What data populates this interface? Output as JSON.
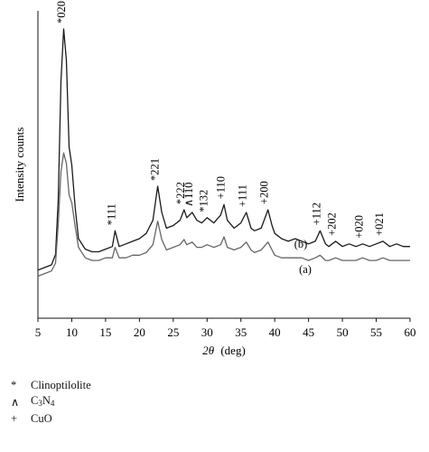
{
  "chart_data": {
    "type": "line",
    "xlabel_symbol": "2θ",
    "xlabel_unit": "(deg)",
    "ylabel": "Intensity counts",
    "xlim": [
      5,
      60
    ],
    "x_ticks": [
      5,
      10,
      15,
      20,
      25,
      30,
      35,
      40,
      45,
      50,
      55,
      60
    ],
    "y_ticks": [],
    "grid": false,
    "series": [
      {
        "name": "(b)",
        "color": "#1a1a1a",
        "points": [
          [
            5,
            0.08
          ],
          [
            6,
            0.09
          ],
          [
            7,
            0.1
          ],
          [
            7.6,
            0.14
          ],
          [
            8.0,
            0.35
          ],
          [
            8.4,
            0.8
          ],
          [
            8.8,
            1.0
          ],
          [
            9.2,
            0.88
          ],
          [
            9.6,
            0.55
          ],
          [
            10.0,
            0.48
          ],
          [
            10.5,
            0.32
          ],
          [
            11,
            0.2
          ],
          [
            12,
            0.16
          ],
          [
            13,
            0.15
          ],
          [
            14,
            0.15
          ],
          [
            15,
            0.16
          ],
          [
            16,
            0.17
          ],
          [
            16.4,
            0.23
          ],
          [
            17,
            0.17
          ],
          [
            18,
            0.18
          ],
          [
            19,
            0.19
          ],
          [
            20,
            0.2
          ],
          [
            21,
            0.22
          ],
          [
            22,
            0.27
          ],
          [
            22.7,
            0.4
          ],
          [
            23.3,
            0.3
          ],
          [
            24,
            0.24
          ],
          [
            25,
            0.25
          ],
          [
            26,
            0.27
          ],
          [
            26.6,
            0.31
          ],
          [
            27,
            0.28
          ],
          [
            27.8,
            0.3
          ],
          [
            28.5,
            0.27
          ],
          [
            29.2,
            0.26
          ],
          [
            30.0,
            0.28
          ],
          [
            31,
            0.26
          ],
          [
            32,
            0.29
          ],
          [
            32.5,
            0.33
          ],
          [
            33,
            0.27
          ],
          [
            34,
            0.24
          ],
          [
            35,
            0.26
          ],
          [
            35.8,
            0.3
          ],
          [
            36.5,
            0.24
          ],
          [
            37,
            0.23
          ],
          [
            38,
            0.24
          ],
          [
            39,
            0.31
          ],
          [
            39.6,
            0.25
          ],
          [
            40,
            0.22
          ],
          [
            41,
            0.2
          ],
          [
            42,
            0.19
          ],
          [
            43,
            0.2
          ],
          [
            44,
            0.19
          ],
          [
            45,
            0.18
          ],
          [
            46,
            0.19
          ],
          [
            46.7,
            0.23
          ],
          [
            47.5,
            0.18
          ],
          [
            48,
            0.17
          ],
          [
            49,
            0.19
          ],
          [
            50,
            0.17
          ],
          [
            51,
            0.18
          ],
          [
            52,
            0.17
          ],
          [
            53,
            0.18
          ],
          [
            54,
            0.17
          ],
          [
            55,
            0.18
          ],
          [
            56,
            0.19
          ],
          [
            57,
            0.17
          ],
          [
            58,
            0.18
          ],
          [
            59,
            0.17
          ],
          [
            60,
            0.17
          ]
        ]
      },
      {
        "name": "(a)",
        "color": "#666666",
        "points": [
          [
            5,
            0.05
          ],
          [
            6,
            0.06
          ],
          [
            7,
            0.07
          ],
          [
            7.6,
            0.1
          ],
          [
            8.0,
            0.25
          ],
          [
            8.4,
            0.45
          ],
          [
            8.8,
            0.52
          ],
          [
            9.2,
            0.48
          ],
          [
            9.6,
            0.36
          ],
          [
            10.0,
            0.33
          ],
          [
            10.5,
            0.24
          ],
          [
            11,
            0.16
          ],
          [
            12,
            0.12
          ],
          [
            13,
            0.11
          ],
          [
            14,
            0.11
          ],
          [
            15,
            0.12
          ],
          [
            16,
            0.12
          ],
          [
            16.4,
            0.16
          ],
          [
            17,
            0.12
          ],
          [
            18,
            0.12
          ],
          [
            19,
            0.13
          ],
          [
            20,
            0.13
          ],
          [
            21,
            0.14
          ],
          [
            22,
            0.17
          ],
          [
            22.7,
            0.26
          ],
          [
            23.3,
            0.19
          ],
          [
            24,
            0.15
          ],
          [
            25,
            0.16
          ],
          [
            26,
            0.17
          ],
          [
            26.6,
            0.19
          ],
          [
            27,
            0.17
          ],
          [
            27.8,
            0.18
          ],
          [
            28.5,
            0.16
          ],
          [
            29.2,
            0.16
          ],
          [
            30.0,
            0.17
          ],
          [
            31,
            0.16
          ],
          [
            32,
            0.17
          ],
          [
            32.5,
            0.2
          ],
          [
            33,
            0.16
          ],
          [
            34,
            0.15
          ],
          [
            35,
            0.16
          ],
          [
            35.8,
            0.18
          ],
          [
            36.5,
            0.15
          ],
          [
            37,
            0.14
          ],
          [
            38,
            0.15
          ],
          [
            39,
            0.18
          ],
          [
            39.6,
            0.15
          ],
          [
            40,
            0.13
          ],
          [
            41,
            0.12
          ],
          [
            42,
            0.12
          ],
          [
            43,
            0.12
          ],
          [
            44,
            0.12
          ],
          [
            45,
            0.11
          ],
          [
            46,
            0.12
          ],
          [
            46.7,
            0.13
          ],
          [
            47.5,
            0.11
          ],
          [
            48,
            0.11
          ],
          [
            49,
            0.12
          ],
          [
            50,
            0.11
          ],
          [
            51,
            0.11
          ],
          [
            52,
            0.11
          ],
          [
            53,
            0.12
          ],
          [
            54,
            0.11
          ],
          [
            55,
            0.11
          ],
          [
            56,
            0.12
          ],
          [
            57,
            0.11
          ],
          [
            58,
            0.11
          ],
          [
            59,
            0.11
          ],
          [
            60,
            0.11
          ]
        ]
      }
    ],
    "peak_labels": [
      {
        "x": 9.0,
        "y": 1.0,
        "text": "*020"
      },
      {
        "x": 16.4,
        "y": 0.23,
        "text": "*111"
      },
      {
        "x": 22.8,
        "y": 0.4,
        "text": "*221"
      },
      {
        "x": 26.6,
        "y": 0.31,
        "text": "*222"
      },
      {
        "x": 27.8,
        "y": 0.3,
        "text": "^110"
      },
      {
        "x": 30.0,
        "y": 0.28,
        "text": "*132"
      },
      {
        "x": 32.6,
        "y": 0.33,
        "text": "+110"
      },
      {
        "x": 35.8,
        "y": 0.3,
        "text": "+111"
      },
      {
        "x": 39.0,
        "y": 0.31,
        "text": "+200"
      },
      {
        "x": 46.7,
        "y": 0.23,
        "text": "+112"
      },
      {
        "x": 49.0,
        "y": 0.19,
        "text": "+202"
      },
      {
        "x": 53.0,
        "y": 0.18,
        "text": "+020"
      },
      {
        "x": 56.0,
        "y": 0.19,
        "text": "+021"
      }
    ],
    "legend": [
      {
        "symbol": "*",
        "label": "Clinoptilolite"
      },
      {
        "symbol": "∧",
        "label_prefix": "C",
        "label_sub": "3",
        "label_mid": "N",
        "label_sub2": "4"
      },
      {
        "symbol": "+",
        "label": "CuO"
      }
    ]
  }
}
